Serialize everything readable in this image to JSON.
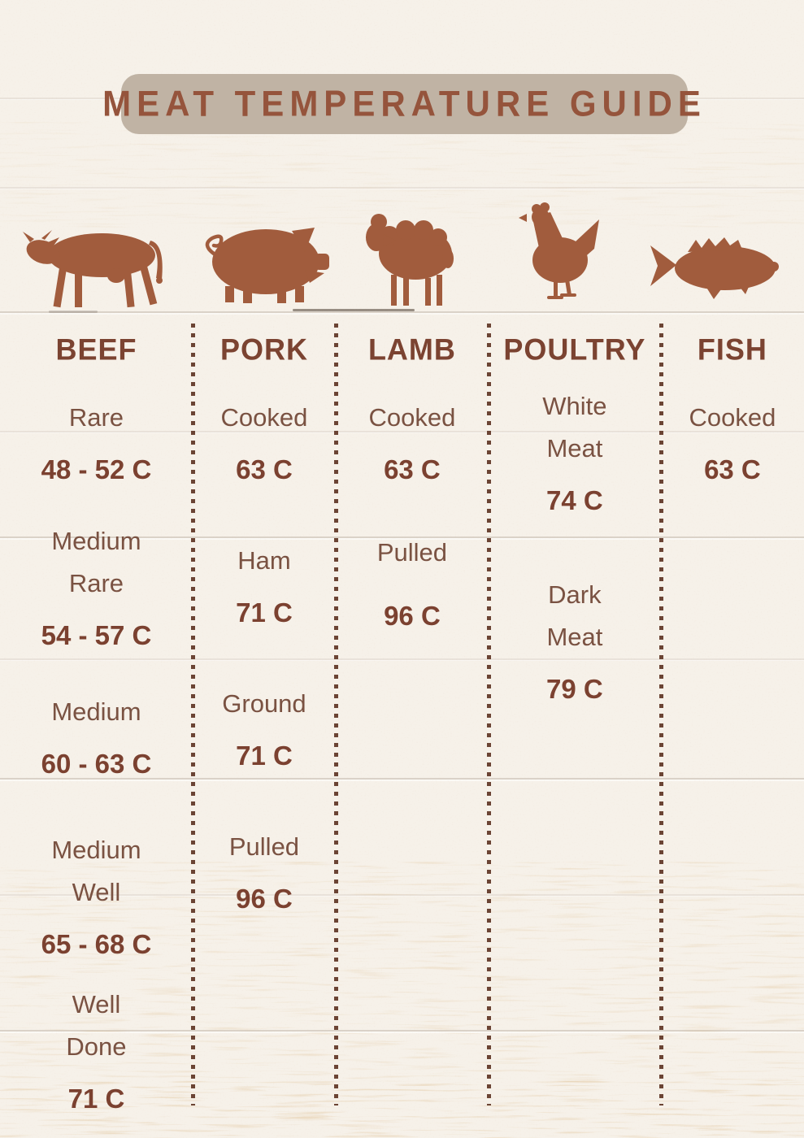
{
  "title": "MEAT TEMPERATURE GUIDE",
  "animal_icons": [
    "cow-icon",
    "pig-icon",
    "sheep-icon",
    "hen-icon",
    "fish-icon"
  ],
  "colors": {
    "background": "#f6f1e9",
    "banner_background": "#c0b3a4",
    "title_text": "#95543c",
    "header_text": "#7b4331",
    "label_text": "#7a5242",
    "value_text": "#7b4130",
    "silhouette": "#a15c3d",
    "divider_dots": "#6b4434"
  },
  "columns": [
    {
      "header": "BEEF",
      "entries": [
        {
          "label": "Rare",
          "value": "48 - 52 C"
        },
        {
          "label": "Medium Rare",
          "value": "54 - 57 C"
        },
        {
          "label": "Medium",
          "value": "60 - 63 C"
        },
        {
          "label": "Medium Well",
          "value": "65 - 68 C"
        },
        {
          "label": "Well Done",
          "value": "71 C"
        }
      ]
    },
    {
      "header": "PORK",
      "entries": [
        {
          "label": "Cooked",
          "value": "63 C"
        },
        {
          "label": "Ham",
          "value": "71 C"
        },
        {
          "label": "Ground",
          "value": "71 C"
        },
        {
          "label": "Pulled",
          "value": "96 C"
        }
      ]
    },
    {
      "header": "LAMB",
      "entries": [
        {
          "label": "Cooked",
          "value": "63 C"
        },
        {
          "label": "Pulled",
          "value": "96 C"
        }
      ]
    },
    {
      "header": "POULTRY",
      "entries": [
        {
          "label": "White Meat",
          "value": "74 C"
        },
        {
          "label": "Dark Meat",
          "value": "79 C"
        }
      ]
    },
    {
      "header": "FISH",
      "entries": [
        {
          "label": "Cooked",
          "value": "63 C"
        }
      ]
    }
  ]
}
